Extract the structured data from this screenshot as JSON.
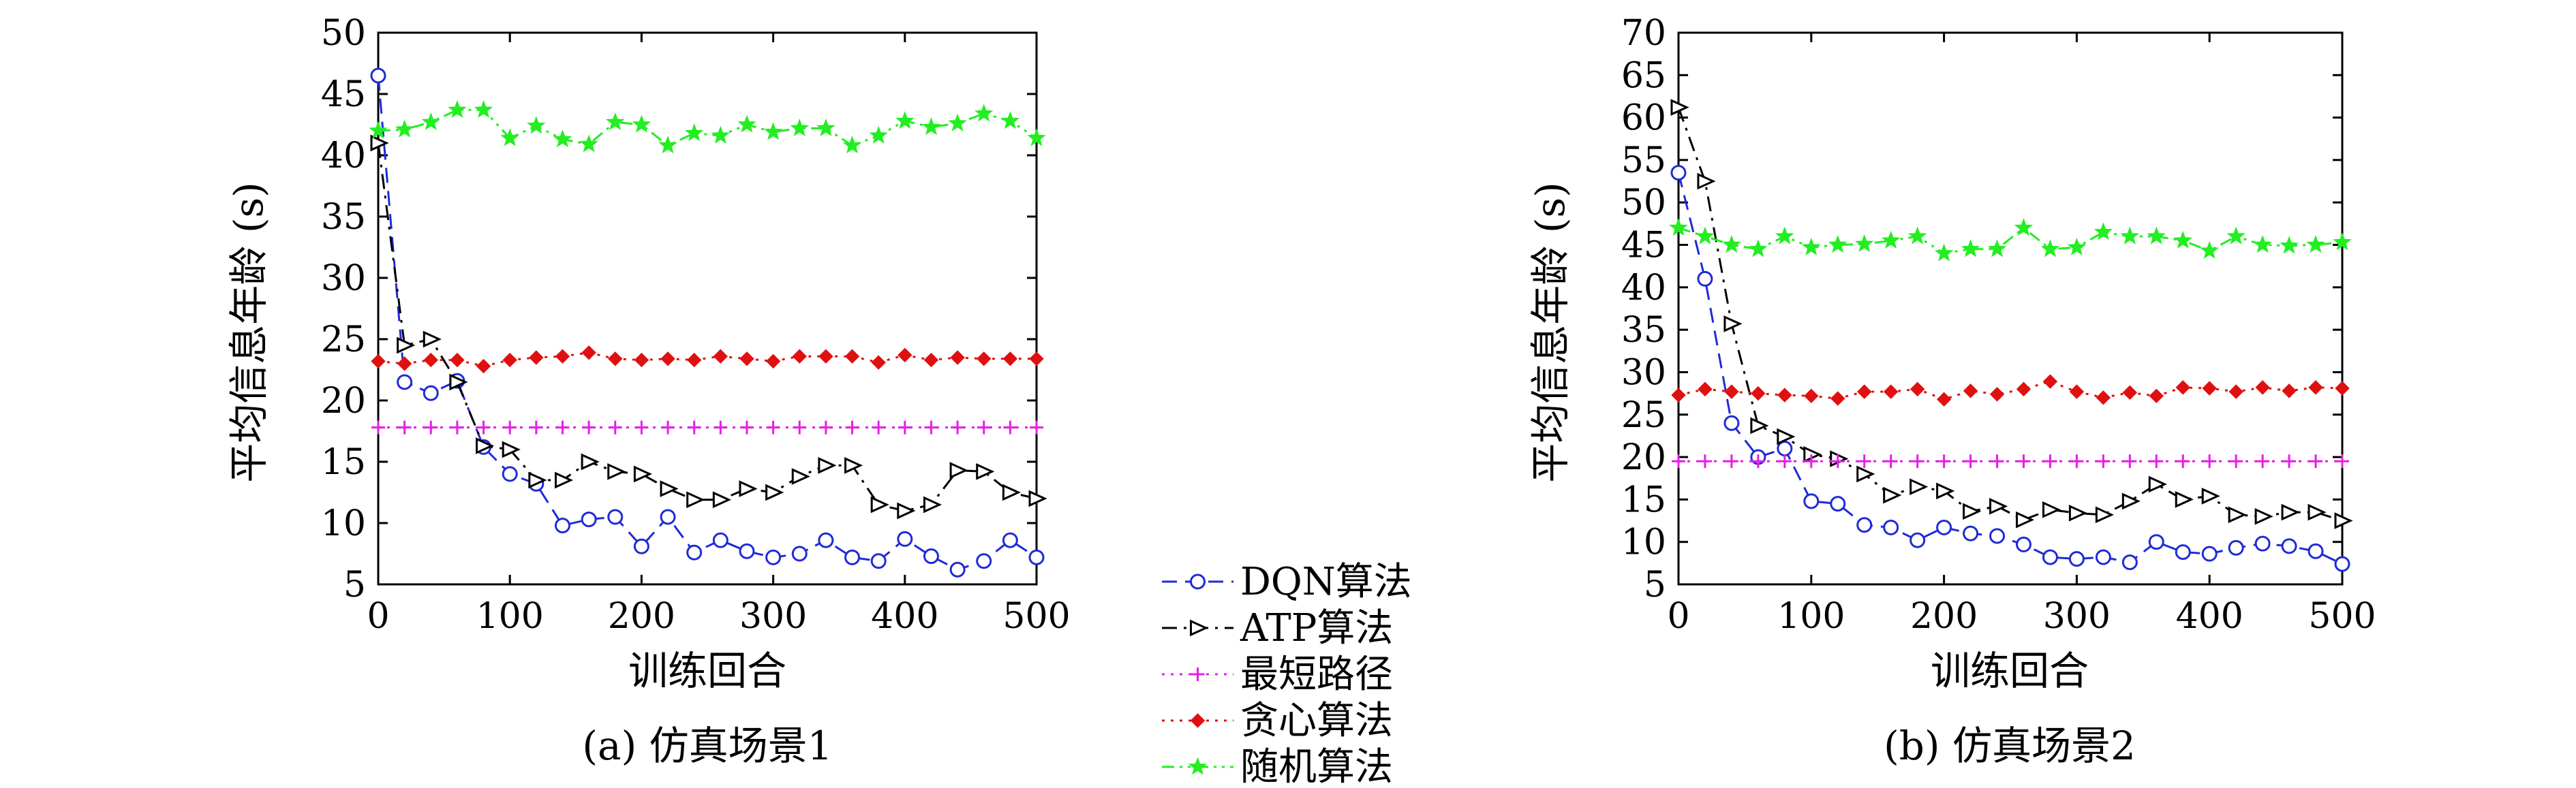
{
  "chart_data": [
    {
      "type": "line",
      "caption": "(a) 仿真场景1",
      "xlabel": "训练回合",
      "ylabel": "平均信息年龄 (s)",
      "xlim": [
        0,
        500
      ],
      "ylim": [
        5,
        50
      ],
      "xticks": [
        0,
        100,
        200,
        300,
        400,
        500
      ],
      "yticks": [
        5,
        10,
        15,
        20,
        25,
        30,
        35,
        40,
        45,
        50
      ],
      "x": [
        0,
        20,
        40,
        60,
        80,
        100,
        120,
        140,
        160,
        180,
        200,
        220,
        240,
        260,
        280,
        300,
        320,
        340,
        360,
        380,
        400,
        420,
        440,
        460,
        480,
        500
      ],
      "grid": false,
      "series": [
        {
          "name": "DQN算法",
          "color": "#1f2bd6",
          "marker": "circle",
          "dash": "dashed",
          "values": [
            46.5,
            21.5,
            20.6,
            21.6,
            16.2,
            14.0,
            13.2,
            9.8,
            10.3,
            10.5,
            8.1,
            10.5,
            7.6,
            8.6,
            7.7,
            7.2,
            7.5,
            8.6,
            7.2,
            6.9,
            8.7,
            7.3,
            6.2,
            6.9,
            8.6,
            7.2
          ]
        },
        {
          "name": "ATP算法",
          "color": "#000000",
          "marker": "triangle-right",
          "dash": "dashdot",
          "values": [
            41.0,
            24.5,
            25.0,
            21.5,
            16.3,
            16.0,
            13.5,
            13.5,
            15.0,
            14.2,
            14.0,
            12.8,
            11.9,
            11.9,
            12.8,
            12.5,
            13.8,
            14.7,
            14.7,
            11.5,
            11.0,
            11.5,
            14.3,
            14.2,
            12.5,
            12.0
          ]
        },
        {
          "name": "最短路径",
          "color": "#e61ee6",
          "marker": "plus",
          "dash": "dotted",
          "values": [
            17.8,
            17.8,
            17.8,
            17.8,
            17.8,
            17.8,
            17.8,
            17.8,
            17.8,
            17.8,
            17.8,
            17.8,
            17.8,
            17.8,
            17.8,
            17.8,
            17.8,
            17.8,
            17.8,
            17.8,
            17.8,
            17.8,
            17.8,
            17.8,
            17.8,
            17.8
          ]
        },
        {
          "name": "贪心算法",
          "color": "#e01010",
          "marker": "diamond",
          "dash": "dotted",
          "values": [
            23.2,
            23.0,
            23.3,
            23.3,
            22.8,
            23.3,
            23.5,
            23.6,
            23.9,
            23.4,
            23.3,
            23.4,
            23.3,
            23.6,
            23.4,
            23.2,
            23.6,
            23.6,
            23.6,
            23.1,
            23.7,
            23.3,
            23.5,
            23.4,
            23.4,
            23.4
          ]
        },
        {
          "name": "随机算法",
          "color": "#22ee22",
          "marker": "star",
          "dash": "dashdotdot",
          "values": [
            42.0,
            42.1,
            42.7,
            43.7,
            43.7,
            41.4,
            42.4,
            41.3,
            40.9,
            42.7,
            42.5,
            40.8,
            41.8,
            41.6,
            42.5,
            41.9,
            42.2,
            42.2,
            40.8,
            41.6,
            42.8,
            42.3,
            42.6,
            43.4,
            42.8,
            41.4
          ]
        }
      ]
    },
    {
      "type": "line",
      "caption": "(b) 仿真场景2",
      "xlabel": "训练回合",
      "ylabel": "平均信息年龄 (s)",
      "xlim": [
        0,
        500
      ],
      "ylim": [
        5,
        70
      ],
      "xticks": [
        0,
        100,
        200,
        300,
        400,
        500
      ],
      "yticks": [
        5,
        10,
        15,
        20,
        25,
        30,
        35,
        40,
        45,
        50,
        55,
        60,
        65,
        70
      ],
      "x": [
        0,
        20,
        40,
        60,
        80,
        100,
        120,
        140,
        160,
        180,
        200,
        220,
        240,
        260,
        280,
        300,
        320,
        340,
        360,
        380,
        400,
        420,
        440,
        460,
        480,
        500
      ],
      "grid": false,
      "series": [
        {
          "name": "DQN算法",
          "color": "#1f2bd6",
          "marker": "circle",
          "dash": "dashed",
          "values": [
            53.5,
            41.0,
            24.0,
            20.0,
            21.0,
            14.8,
            14.5,
            12.0,
            11.7,
            10.2,
            11.7,
            11.0,
            10.7,
            9.7,
            8.2,
            8.0,
            8.2,
            7.6,
            10.0,
            8.8,
            8.6,
            9.3,
            9.8,
            9.5,
            8.9,
            7.4
          ]
        },
        {
          "name": "ATP算法",
          "color": "#000000",
          "marker": "triangle-right",
          "dash": "dashdot",
          "values": [
            61.2,
            52.5,
            35.7,
            23.7,
            22.4,
            20.3,
            19.8,
            18.0,
            15.5,
            16.5,
            16.0,
            13.6,
            14.2,
            12.6,
            13.8,
            13.4,
            13.2,
            14.8,
            16.8,
            15.0,
            15.4,
            13.2,
            13.0,
            13.5,
            13.5,
            12.5
          ]
        },
        {
          "name": "最短路径",
          "color": "#e61ee6",
          "marker": "plus",
          "dash": "dotted",
          "values": [
            19.5,
            19.5,
            19.5,
            19.5,
            19.5,
            19.5,
            19.5,
            19.5,
            19.5,
            19.5,
            19.5,
            19.5,
            19.5,
            19.5,
            19.5,
            19.5,
            19.5,
            19.5,
            19.5,
            19.5,
            19.5,
            19.5,
            19.5,
            19.5,
            19.5,
            19.5
          ]
        },
        {
          "name": "贪心算法",
          "color": "#e01010",
          "marker": "diamond",
          "dash": "dotted",
          "values": [
            27.3,
            28.0,
            27.7,
            27.5,
            27.3,
            27.2,
            26.9,
            27.7,
            27.7,
            28.0,
            26.8,
            27.8,
            27.4,
            28.0,
            28.9,
            27.7,
            27.0,
            27.6,
            27.2,
            28.2,
            28.1,
            27.7,
            28.2,
            27.8,
            28.2,
            28.1
          ]
        },
        {
          "name": "随机算法",
          "color": "#22ee22",
          "marker": "star",
          "dash": "dashdotdot",
          "values": [
            47.0,
            46.0,
            45.0,
            44.5,
            46.0,
            44.7,
            45.0,
            45.1,
            45.5,
            46.0,
            44.0,
            44.5,
            44.5,
            47.0,
            44.5,
            44.7,
            46.5,
            46.0,
            46.0,
            45.5,
            44.3,
            46.0,
            45.0,
            44.9,
            45.0,
            45.3
          ]
        }
      ]
    }
  ]
}
